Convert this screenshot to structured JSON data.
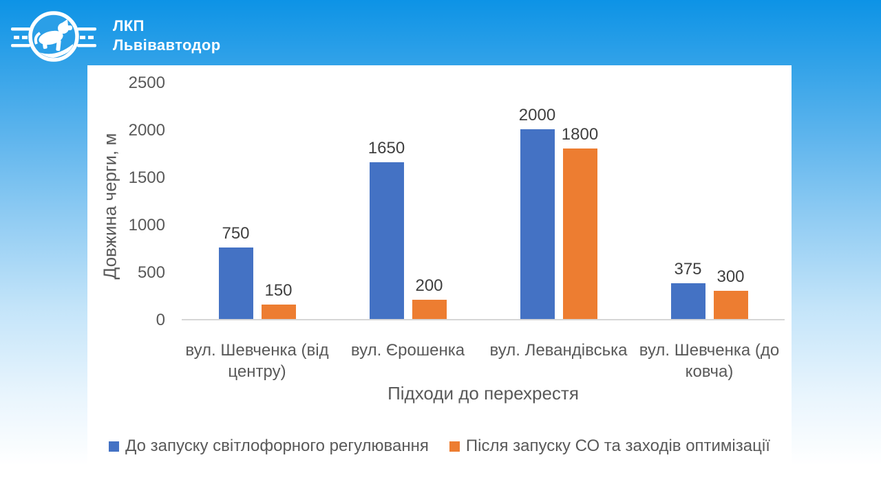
{
  "logo": {
    "line1": "ЛКП",
    "line2": "Львівавтодор"
  },
  "colors": {
    "series_before": "#4472C4",
    "series_after": "#ED7D31",
    "axis_text": "#595959",
    "data_label_text": "#404040",
    "axis_line": "#D6D6D6",
    "background_top": "#0D93E6",
    "background_bottom": "#FFFFFF",
    "panel_background": "#FFFFFF",
    "logo_text": "#FFFFFF"
  },
  "chart_data": {
    "type": "bar",
    "title": "",
    "categories": [
      "вул. Шевченка (від центру)",
      "вул. Єрошенка",
      "вул. Левандівська",
      "вул. Шевченка (до ковча)"
    ],
    "series": [
      {
        "name": "До запуску світлофорного регулювання",
        "color": "#4472C4",
        "values": [
          750,
          1650,
          2000,
          375
        ]
      },
      {
        "name": "Після запуску СО та заходів оптимізації",
        "color": "#ED7D31",
        "values": [
          150,
          200,
          1800,
          300
        ]
      }
    ],
    "xlabel": "Підходи до перехрестя",
    "ylabel": "Довжина черги, м",
    "ylim": [
      0,
      2500
    ],
    "yticks": [
      0,
      500,
      1000,
      1500,
      2000,
      2500
    ],
    "grid": false,
    "data_labels": true,
    "legend_position": "bottom"
  }
}
